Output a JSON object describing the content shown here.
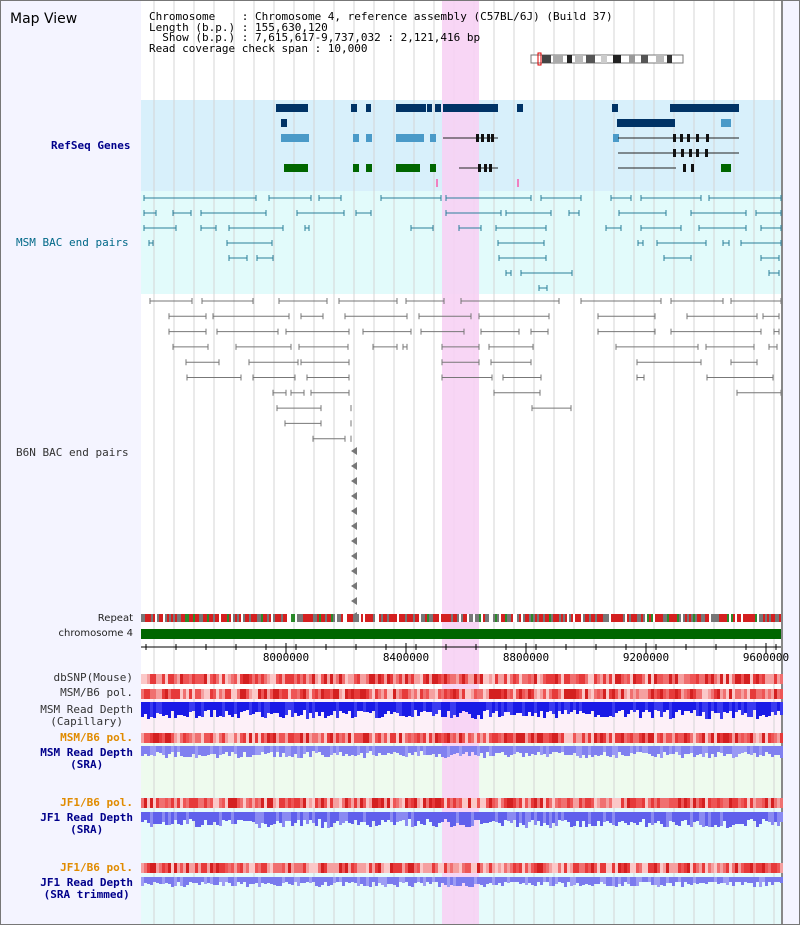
{
  "title": "Map View",
  "info": {
    "line1": "Chromosome    : Chromosome 4, reference assembly (C57BL/6J) (Build 37)",
    "line2": "Length (b.p.) : 155,630,120",
    "line3": "  Show (b.p.) : 7,615,617-9,737,032 : 2,121,416 bp",
    "line4": "Read coverage check span : 10,000"
  },
  "tracks": {
    "refseq": "RefSeq Genes",
    "msm_bac": "MSM BAC end pairs",
    "b6n_bac": "B6N BAC end pairs",
    "repeat": "Repeat",
    "chromosome": "chromosome 4",
    "dbsnp": "dbSNP(Mouse)",
    "msm_b6_pol": "MSM/B6 pol.",
    "msm_depth_cap_1": "MSM Read Depth",
    "msm_depth_cap_2": "(Capillary)",
    "msm_b6_pol2": "MSM/B6 pol.",
    "msm_depth_sra_1": "MSM Read Depth",
    "msm_depth_sra_2": "(SRA)",
    "jf1_b6_pol": "JF1/B6 pol.",
    "jf1_depth_sra_1": "JF1 Read Depth",
    "jf1_depth_sra_2": "(SRA)",
    "jf1_b6_pol2": "JF1/B6 pol.",
    "jf1_depth_trim_1": "JF1 Read Depth",
    "jf1_depth_trim_2": "(SRA trimmed)"
  },
  "axis": {
    "ticks": [
      "8000000",
      "8400000",
      "8800000",
      "9200000",
      "9600000"
    ]
  },
  "colors": {
    "refseq_bg": "#d8f0fb",
    "msm_bg": "#e2fbfb",
    "highlight": "#f7d2f4",
    "gene_dark": "#003366",
    "gene_mid": "#4a9ac8",
    "gene_green": "#006600",
    "chrom_green": "#006600",
    "depth_blue": "#1a1ae6",
    "depth_light": "#8080f0"
  }
}
